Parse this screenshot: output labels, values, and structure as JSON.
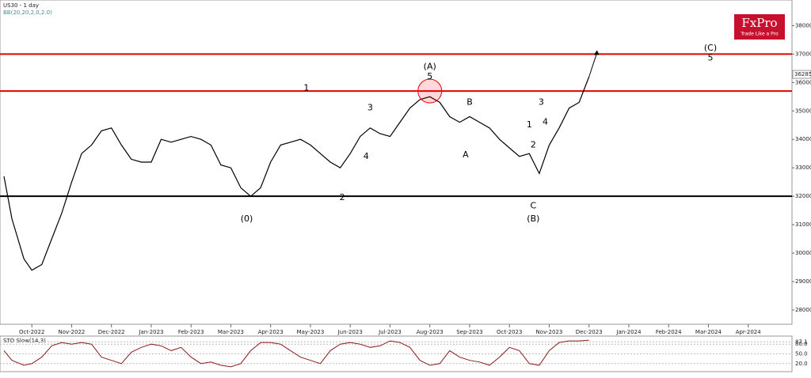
{
  "chart_data": [
    {
      "type": "line",
      "title": "US30 - 1 day",
      "subtitle": "BB(20,20,2,0,2.0)",
      "logo": {
        "brand": "FxPro",
        "tagline": "Trade Like a Pro"
      },
      "x": [
        -0.7,
        -0.5,
        -0.2,
        0,
        0.25,
        0.5,
        0.75,
        1,
        1.25,
        1.5,
        1.75,
        2,
        2.25,
        2.5,
        2.75,
        3,
        3.25,
        3.5,
        3.75,
        4,
        4.25,
        4.5,
        4.75,
        5,
        5.25,
        5.5,
        5.75,
        6,
        6.25,
        6.5,
        6.75,
        7,
        7.25,
        7.5,
        7.75,
        8,
        8.25,
        8.5,
        8.75,
        9,
        9.25,
        9.5,
        9.75,
        10,
        10.25,
        10.5,
        10.75,
        11,
        11.25,
        11.5,
        11.75,
        12,
        12.25,
        12.5,
        12.75,
        13,
        13.25,
        13.5,
        13.75,
        14
      ],
      "values": [
        32700,
        31200,
        29800,
        29400,
        29600,
        30500,
        31400,
        32500,
        33500,
        33800,
        34300,
        34400,
        33800,
        33300,
        33200,
        33200,
        34000,
        33900,
        34000,
        34100,
        34000,
        33800,
        33100,
        33000,
        32300,
        32000,
        32300,
        33200,
        33800,
        33900,
        34000,
        33800,
        33500,
        33200,
        33000,
        33500,
        34100,
        34400,
        34200,
        34100,
        34600,
        35100,
        35400,
        35500,
        35300,
        34800,
        34600,
        34800,
        34600,
        34400,
        34000,
        33700,
        33400,
        33500,
        32800,
        33800,
        34400,
        35100,
        35300,
        36200
      ],
      "color": "#000000",
      "arrow_to": {
        "x": 14.2,
        "y": 37050
      },
      "last_price": 36285,
      "levels": [
        {
          "value": 37000,
          "color": "#e00000"
        },
        {
          "value": 35700,
          "color": "#e00000"
        },
        {
          "value": 32000,
          "color": "#000000"
        }
      ],
      "xlim": [
        -0.8,
        19.1
      ],
      "xticks": [
        {
          "value": 0,
          "label": "Oct-2022"
        },
        {
          "value": 1,
          "label": "Nov-2022"
        },
        {
          "value": 2,
          "label": "Dec-2022"
        },
        {
          "value": 3,
          "label": "Jan-2023"
        },
        {
          "value": 4,
          "label": "Feb-2023"
        },
        {
          "value": 5,
          "label": "Mar-2023"
        },
        {
          "value": 6,
          "label": "Apr-2023"
        },
        {
          "value": 7,
          "label": "May-2023"
        },
        {
          "value": 8,
          "label": "Jun-2023"
        },
        {
          "value": 9,
          "label": "Jul-2023"
        },
        {
          "value": 10,
          "label": "Aug-2023"
        },
        {
          "value": 11,
          "label": "Sep-2023"
        },
        {
          "value": 12,
          "label": "Oct-2023"
        },
        {
          "value": 13,
          "label": "Nov-2023"
        },
        {
          "value": 14,
          "label": "Dec-2023"
        },
        {
          "value": 15,
          "label": "Jan-2024"
        },
        {
          "value": 16,
          "label": "Feb-2024"
        },
        {
          "value": 17,
          "label": "Mar-2024"
        },
        {
          "value": 18,
          "label": "Apr-2024"
        }
      ],
      "ylim": [
        27500,
        38900
      ],
      "yticks": [
        28000,
        29000,
        30000,
        31000,
        32000,
        33000,
        34000,
        35000,
        36000,
        37000,
        38000
      ],
      "annotations": [
        {
          "text": "(A)",
          "x": 10.0,
          "y": 36550
        },
        {
          "text": "5",
          "x": 10.0,
          "y": 36200
        },
        {
          "text": "(C)",
          "x": 17.05,
          "y": 37200
        },
        {
          "text": "5",
          "x": 17.05,
          "y": 36850
        },
        {
          "text": "(0)",
          "x": 5.4,
          "y": 31200
        },
        {
          "text": "(B)",
          "x": 12.6,
          "y": 31200
        },
        {
          "text": "C",
          "x": 12.6,
          "y": 31650
        },
        {
          "text": "A",
          "x": 10.9,
          "y": 33450
        },
        {
          "text": "B",
          "x": 11.0,
          "y": 35300
        },
        {
          "text": "1",
          "x": 6.9,
          "y": 35800
        },
        {
          "text": "2",
          "x": 7.8,
          "y": 31950
        },
        {
          "text": "3",
          "x": 8.5,
          "y": 35100
        },
        {
          "text": "4",
          "x": 8.4,
          "y": 33400
        },
        {
          "text": "1",
          "x": 12.5,
          "y": 34500
        },
        {
          "text": "2",
          "x": 12.6,
          "y": 33800
        },
        {
          "text": "3",
          "x": 12.8,
          "y": 35300
        },
        {
          "text": "4",
          "x": 12.9,
          "y": 34600
        }
      ]
    },
    {
      "type": "line",
      "title": "STO Slow(14,3)",
      "x": [
        -0.7,
        -0.5,
        -0.2,
        0,
        0.25,
        0.5,
        0.75,
        1,
        1.25,
        1.5,
        1.75,
        2,
        2.25,
        2.5,
        2.75,
        3,
        3.25,
        3.5,
        3.75,
        4,
        4.25,
        4.5,
        4.75,
        5,
        5.25,
        5.5,
        5.75,
        6,
        6.25,
        6.5,
        6.75,
        7,
        7.25,
        7.5,
        7.75,
        8,
        8.25,
        8.5,
        8.75,
        9,
        9.25,
        9.5,
        9.75,
        10,
        10.25,
        10.5,
        10.75,
        11,
        11.25,
        11.5,
        11.75,
        12,
        12.25,
        12.5,
        12.75,
        13,
        13.25,
        13.5,
        13.75,
        14
      ],
      "values": [
        60,
        30,
        15,
        20,
        40,
        75,
        85,
        80,
        85,
        80,
        40,
        30,
        20,
        55,
        70,
        80,
        75,
        60,
        70,
        40,
        20,
        25,
        15,
        10,
        20,
        60,
        85,
        85,
        80,
        60,
        40,
        30,
        20,
        60,
        80,
        85,
        80,
        70,
        75,
        90,
        85,
        70,
        30,
        15,
        20,
        60,
        40,
        30,
        25,
        15,
        40,
        70,
        60,
        20,
        15,
        60,
        85,
        90,
        90,
        92
      ],
      "color": "#8b1a1a",
      "xlim": [
        -0.8,
        19.1
      ],
      "ylim": [
        0,
        100
      ],
      "yticks": [
        {
          "value": 20,
          "label": "20.0"
        },
        {
          "value": 50,
          "label": "50.0"
        },
        {
          "value": 80,
          "label": "80.0"
        },
        {
          "value": 87.1,
          "label": "87.1"
        }
      ]
    }
  ]
}
